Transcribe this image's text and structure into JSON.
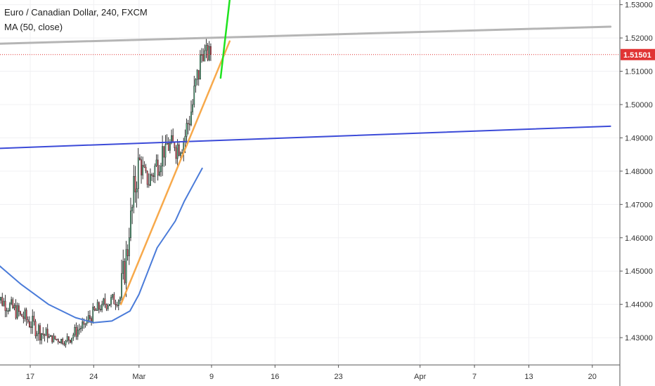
{
  "header": {
    "symbol_line": "Euro / Canadian Dollar, 240, FXCM",
    "indicator_line": "MA (50, close)"
  },
  "colors": {
    "up_candle": "#53b987",
    "down_candle": "#eb4d5c",
    "wick": "#000000",
    "ma_line": "#4a7bd9",
    "price_marker": "#e03434",
    "gray_line": "#b5b5b5",
    "blue_line": "#3b4ad8",
    "orange_line": "#f7a94b",
    "green_line": "#1ee31e",
    "grid": "#f0f0f3",
    "axis": "#555555"
  },
  "chart_data": {
    "type": "candlestick",
    "title": "Euro / Canadian Dollar, 240, FXCM",
    "indicator": "MA (50, close)",
    "ylim": [
      1.4218,
      1.5314
    ],
    "y_ticks": [
      "1.43000",
      "1.44000",
      "1.45000",
      "1.46000",
      "1.47000",
      "1.48000",
      "1.49000",
      "1.50000",
      "1.51000",
      "1.52000",
      "1.53000"
    ],
    "x_ticks": [
      "17",
      "24",
      "Mar",
      "9",
      "16",
      "23",
      "Apr",
      "7",
      "13",
      "20"
    ],
    "x_tick_dates": [
      "2019-02-17",
      "2019-02-24",
      "2019-03-01",
      "2019-03-09",
      "2019-03-16",
      "2019-03-23",
      "2019-04-01",
      "2019-04-07",
      "2019-04-13",
      "2019-04-20"
    ],
    "last_price": "1.51501",
    "ohlc_segments": [
      {
        "start": "2019-02-13",
        "end": "2019-02-16",
        "open": 1.443,
        "close": 1.437,
        "high": 1.445,
        "low": 1.435
      },
      {
        "start": "2019-02-16",
        "end": "2019-02-19",
        "open": 1.437,
        "close": 1.43,
        "high": 1.439,
        "low": 1.428
      },
      {
        "start": "2019-02-19",
        "end": "2019-02-21",
        "open": 1.43,
        "close": 1.429,
        "high": 1.432,
        "low": 1.427
      },
      {
        "start": "2019-02-21",
        "end": "2019-02-23",
        "open": 1.429,
        "close": 1.434,
        "high": 1.436,
        "low": 1.428
      },
      {
        "start": "2019-02-23",
        "end": "2019-02-25",
        "open": 1.434,
        "close": 1.44,
        "high": 1.442,
        "low": 1.433
      },
      {
        "start": "2019-02-25",
        "end": "2019-02-27",
        "open": 1.44,
        "close": 1.442,
        "high": 1.447,
        "low": 1.438
      },
      {
        "start": "2019-02-27",
        "end": "2019-02-28",
        "open": 1.442,
        "close": 1.46,
        "high": 1.463,
        "low": 1.441
      },
      {
        "start": "2019-02-28",
        "end": "2019-03-01",
        "open": 1.46,
        "close": 1.484,
        "high": 1.487,
        "low": 1.459
      },
      {
        "start": "2019-03-01",
        "end": "2019-03-02",
        "open": 1.484,
        "close": 1.476,
        "high": 1.486,
        "low": 1.472
      },
      {
        "start": "2019-03-02",
        "end": "2019-03-04",
        "open": 1.476,
        "close": 1.488,
        "high": 1.492,
        "low": 1.475
      },
      {
        "start": "2019-03-04",
        "end": "2019-03-05",
        "open": 1.488,
        "close": 1.487,
        "high": 1.497,
        "low": 1.482
      },
      {
        "start": "2019-03-05",
        "end": "2019-03-06",
        "open": 1.487,
        "close": 1.489,
        "high": 1.496,
        "low": 1.48
      },
      {
        "start": "2019-03-06",
        "end": "2019-03-07",
        "open": 1.489,
        "close": 1.5,
        "high": 1.505,
        "low": 1.485
      },
      {
        "start": "2019-03-07",
        "end": "2019-03-08",
        "open": 1.5,
        "close": 1.515,
        "high": 1.521,
        "low": 1.499
      },
      {
        "start": "2019-03-08",
        "end": "2019-03-09",
        "open": 1.515,
        "close": 1.515,
        "high": 1.525,
        "low": 1.513
      }
    ],
    "ma50": [
      {
        "date": "2019-02-10",
        "value": 1.46
      },
      {
        "date": "2019-02-13",
        "value": 1.453
      },
      {
        "date": "2019-02-16",
        "value": 1.446
      },
      {
        "date": "2019-02-19",
        "value": 1.44
      },
      {
        "date": "2019-02-22",
        "value": 1.436
      },
      {
        "date": "2019-02-24",
        "value": 1.4345
      },
      {
        "date": "2019-02-26",
        "value": 1.435
      },
      {
        "date": "2019-02-28",
        "value": 1.438
      },
      {
        "date": "2019-03-01",
        "value": 1.443
      },
      {
        "date": "2019-03-02",
        "value": 1.45
      },
      {
        "date": "2019-03-03",
        "value": 1.457
      },
      {
        "date": "2019-03-05",
        "value": 1.465
      },
      {
        "date": "2019-03-06",
        "value": 1.471
      },
      {
        "date": "2019-03-07",
        "value": 1.476
      },
      {
        "date": "2019-03-08",
        "value": 1.481
      }
    ],
    "drawings": [
      {
        "name": "gray-resistance-line",
        "color_key": "gray_line",
        "width": 3,
        "from": {
          "date": "2019-02-10",
          "value": 1.518
        },
        "to": {
          "date": "2019-04-22",
          "value": 1.5234
        }
      },
      {
        "name": "blue-support-line",
        "color_key": "blue_line",
        "width": 2,
        "from": {
          "date": "2019-02-10",
          "value": 1.4865
        },
        "to": {
          "date": "2019-04-22",
          "value": 1.4935
        }
      },
      {
        "name": "orange-trend-line",
        "color_key": "orange_line",
        "width": 2.5,
        "from": {
          "date": "2019-02-27",
          "value": 1.44
        },
        "to": {
          "date": "2019-03-11",
          "value": 1.519
        }
      },
      {
        "name": "green-trend-line",
        "color_key": "green_line",
        "width": 2.5,
        "from": {
          "date": "2019-03-10",
          "value": 1.508
        },
        "to": {
          "date": "2019-03-11",
          "value": 1.5314
        }
      }
    ]
  }
}
